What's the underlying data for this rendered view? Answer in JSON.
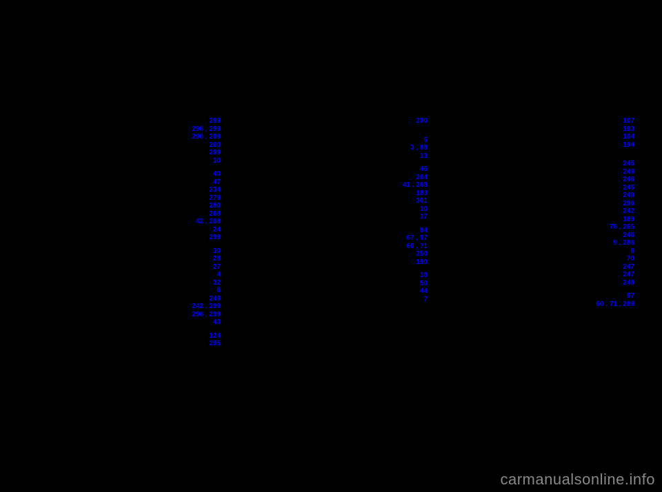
{
  "watermark": "carmanualsonline.info",
  "columns": [
    {
      "entries": [
        {
          "pages": "299"
        },
        {
          "pages": "296 , 299"
        },
        {
          "pages": "296 , 299"
        },
        {
          "pages": "260"
        },
        {
          "pages": "299"
        },
        {
          "pages": "10"
        },
        {
          "gap": true
        },
        {
          "pages": "40"
        },
        {
          "pages": "47"
        },
        {
          "pages": "234"
        },
        {
          "pages": "279"
        },
        {
          "pages": "280"
        },
        {
          "pages": "268"
        },
        {
          "pages": "42 , 268"
        },
        {
          "pages": "24"
        },
        {
          "pages": "299"
        },
        {
          "gap": true
        },
        {
          "pages": "30"
        },
        {
          "pages": "28"
        },
        {
          "pages": "27"
        },
        {
          "pages": "4"
        },
        {
          "pages": "32"
        },
        {
          "pages": "6"
        },
        {
          "pages": "249"
        },
        {
          "pages": "242 , 299"
        },
        {
          "pages": "296 , 299"
        },
        {
          "pages": "43"
        },
        {
          "gap": true
        },
        {
          "pages": "124"
        },
        {
          "pages": "295"
        }
      ]
    },
    {
      "entries": [
        {
          "pages": "290"
        },
        {
          "gap": true
        },
        {
          "gap": true
        },
        {
          "pages": "5"
        },
        {
          "pages": "3 , 88"
        },
        {
          "pages": "13"
        },
        {
          "gap": true
        },
        {
          "pages": "46"
        },
        {
          "pages": "264"
        },
        {
          "pages": "41 , 268"
        },
        {
          "pages": "183"
        },
        {
          "pages": "301"
        },
        {
          "pages": "10"
        },
        {
          "pages": "17"
        },
        {
          "gap": true
        },
        {
          "pages": "94"
        },
        {
          "pages": "67 , 97"
        },
        {
          "pages": "60 , 71"
        },
        {
          "pages": "250"
        },
        {
          "pages": "190"
        },
        {
          "gap": true
        },
        {
          "pages": "18"
        },
        {
          "pages": "50"
        },
        {
          "pages": "44"
        },
        {
          "pages": "7"
        }
      ]
    },
    {
      "entries": [
        {
          "pages": "107"
        },
        {
          "pages": "103"
        },
        {
          "pages": "104"
        },
        {
          "pages": "194"
        },
        {
          "gap": true
        },
        {
          "gap": true
        },
        {
          "pages": "245"
        },
        {
          "pages": "249"
        },
        {
          "pages": "246"
        },
        {
          "pages": "245"
        },
        {
          "pages": "249"
        },
        {
          "pages": "296"
        },
        {
          "pages": "242"
        },
        {
          "pages": "189"
        },
        {
          "pages": "76 , 265"
        },
        {
          "pages": "246"
        },
        {
          "pages": "9 , 286"
        },
        {
          "pages": "6"
        },
        {
          "pages": "70"
        },
        {
          "pages": "247"
        },
        {
          "pages": "247"
        },
        {
          "pages": "248"
        },
        {
          "gap": true
        },
        {
          "pages": "97"
        },
        {
          "pages": "60 , 71 , 289"
        }
      ]
    }
  ]
}
